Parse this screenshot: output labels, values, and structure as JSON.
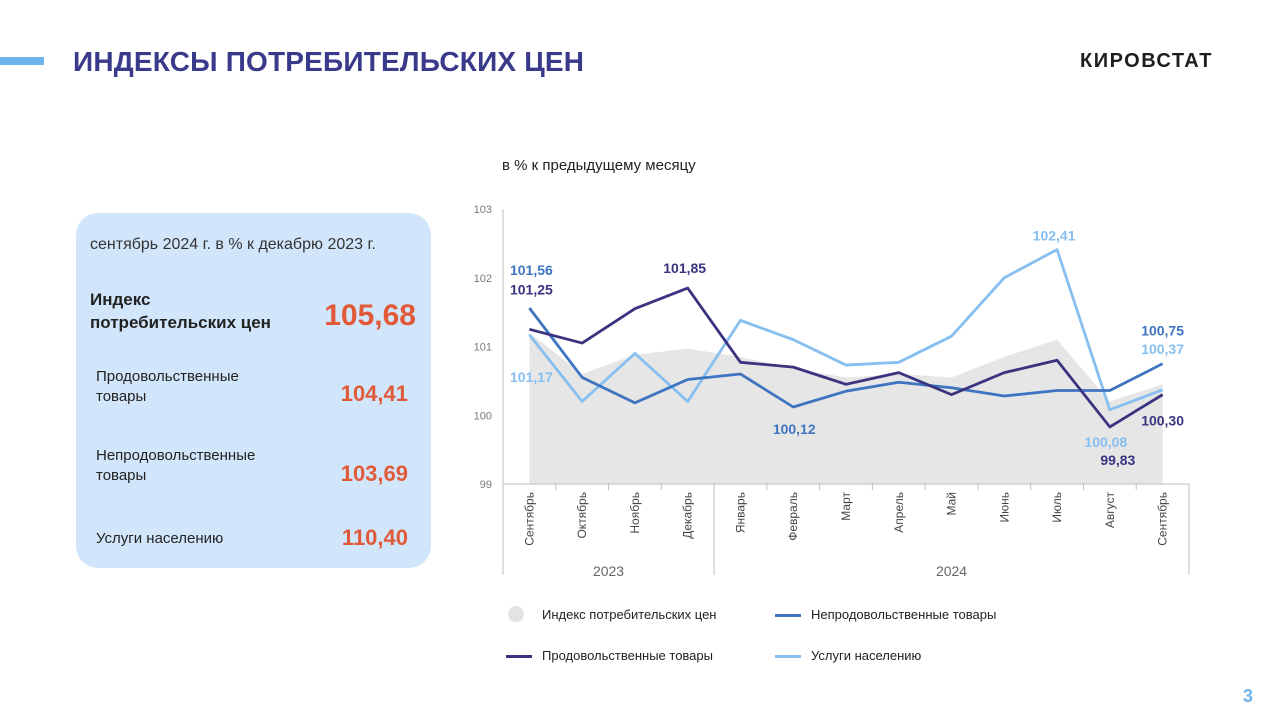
{
  "header": {
    "title": "ИНДЕКСЫ ПОТРЕБИТЕЛЬСКИХ ЦЕН",
    "logo": "КИРОВСТАТ",
    "page": "3"
  },
  "panel": {
    "heading": "сентябрь 2024 г. в % к декабрю 2023 г.",
    "rows": [
      {
        "label_line1": "Индекс",
        "label_line2": "потребительских цен",
        "value": "105,68"
      },
      {
        "label_line1": "Продовольственные",
        "label_line2": "товары",
        "value": "104,41"
      },
      {
        "label_line1": "Непродовольственные",
        "label_line2": "товары",
        "value": "103,69"
      },
      {
        "label_line1": "Услуги населению",
        "label_line2": "",
        "value": "110,40"
      }
    ]
  },
  "colors": {
    "title": "#3a3a8c",
    "accent": "#6fb3ee",
    "value": "#e05a3a",
    "panel": "#d2e6fb",
    "cpi_area": "#e6e6e6",
    "food": "#3a3480",
    "nonfood": "#3f74c0",
    "services": "#86bff0"
  },
  "chart_data": {
    "type": "line",
    "unit_label": "в % к предыдущему месяцу",
    "categories": [
      "Сентябрь",
      "Октябрь",
      "Ноябрь",
      "Декабрь",
      "Январь",
      "Февраль",
      "Март",
      "Апрель",
      "Май",
      "Июнь",
      "Июль",
      "Август",
      "Сентябрь"
    ],
    "year_groups": [
      {
        "label": "2023",
        "count": 4
      },
      {
        "label": "2024",
        "count": 9
      }
    ],
    "ylim": [
      99,
      103
    ],
    "yticks": [
      "99",
      "100",
      "101",
      "102",
      "103"
    ],
    "series": [
      {
        "name": "Индекс потребительских цен",
        "style": "area",
        "values": [
          101.2,
          100.6,
          100.88,
          100.97,
          100.85,
          100.68,
          100.55,
          100.6,
          100.55,
          100.85,
          101.1,
          100.2,
          100.45
        ]
      },
      {
        "name": "Продовольственные товары",
        "style": "line",
        "values": [
          101.25,
          101.05,
          101.55,
          101.85,
          100.77,
          100.7,
          100.45,
          100.62,
          100.3,
          100.62,
          100.8,
          99.83,
          100.3
        ]
      },
      {
        "name": "Непродовольственные товары",
        "style": "line",
        "values": [
          101.56,
          100.55,
          100.18,
          100.52,
          100.6,
          100.12,
          100.35,
          100.48,
          100.4,
          100.28,
          100.36,
          100.36,
          100.75
        ]
      },
      {
        "name": "Услуги населению",
        "style": "line",
        "values": [
          101.17,
          100.2,
          100.9,
          100.2,
          101.38,
          101.1,
          100.73,
          100.77,
          101.15,
          102.0,
          102.41,
          100.08,
          100.37
        ]
      }
    ],
    "data_labels": [
      {
        "series": 2,
        "index": 0,
        "text": "101,56",
        "dx": 2,
        "dy": -33
      },
      {
        "series": 1,
        "index": 0,
        "text": "101,25",
        "dx": 2,
        "dy": -35
      },
      {
        "series": 1,
        "index": 3,
        "text": "101,85",
        "dx": -3,
        "dy": -15
      },
      {
        "series": 3,
        "index": 0,
        "text": "101,17",
        "dx": 2,
        "dy": 47
      },
      {
        "series": 2,
        "index": 5,
        "text": "100,12",
        "dx": 1,
        "dy": 27
      },
      {
        "series": 3,
        "index": 10,
        "text": "102,41",
        "dx": -3,
        "dy": -9
      },
      {
        "series": 2,
        "index": 12,
        "text": "100,75",
        "dx": 0,
        "dy": -28
      },
      {
        "series": 3,
        "index": 12,
        "text": "100,37",
        "dx": 0,
        "dy": -36
      },
      {
        "series": 1,
        "index": 12,
        "text": "100,30",
        "dx": 0,
        "dy": 31
      },
      {
        "series": 3,
        "index": 11,
        "text": "100,08",
        "dx": -4,
        "dy": 37
      },
      {
        "series": 1,
        "index": 11,
        "text": "99,83",
        "dx": 8,
        "dy": 38
      }
    ]
  }
}
